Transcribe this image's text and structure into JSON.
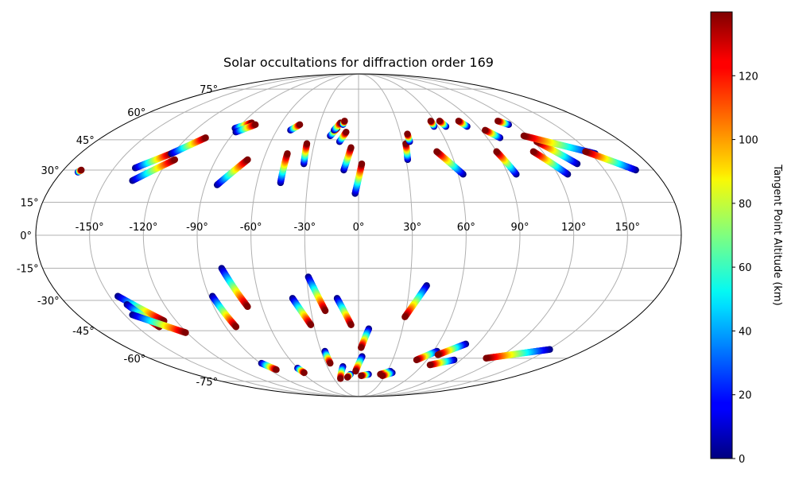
{
  "chart_data": {
    "type": "scatter",
    "title": "Solar occultations for diffraction order 169",
    "projection": "mollweide",
    "grid": true,
    "longitude_tick_labels": [
      "-150°",
      "-120°",
      "-90°",
      "-60°",
      "-30°",
      "0°",
      "30°",
      "60°",
      "90°",
      "120°",
      "150°"
    ],
    "longitude_tick_values": [
      -150,
      -120,
      -90,
      -60,
      -30,
      0,
      30,
      60,
      90,
      120,
      150
    ],
    "latitude_tick_labels": [
      "-75°",
      "-60°",
      "-45°",
      "-30°",
      "-15°",
      "0°",
      "15°",
      "30°",
      "45°",
      "60°",
      "75°"
    ],
    "latitude_tick_values": [
      -75,
      -60,
      -45,
      -30,
      -15,
      0,
      15,
      30,
      45,
      60,
      75
    ],
    "colorbar": {
      "label": "Tangent Point Altitude (km)",
      "colormap": "jet",
      "range": [
        0,
        140
      ],
      "tick_values": [
        0,
        20,
        40,
        60,
        80,
        100,
        120
      ],
      "tick_labels": [
        "0",
        "20",
        "40",
        "60",
        "80",
        "100",
        "120"
      ]
    },
    "tracks": [
      {
        "lon_low": -170,
        "lat_low": 29,
        "lon_high": -169,
        "lat_high": 30
      },
      {
        "lon_low": -137,
        "lat_low": 31,
        "lon_high": -121,
        "lat_high": 38
      },
      {
        "lon_low": -134,
        "lat_low": 25,
        "lon_high": -116,
        "lat_high": 35
      },
      {
        "lon_low": -121,
        "lat_low": 38,
        "lon_high": -107,
        "lat_high": 46
      },
      {
        "lon_low": -92,
        "lat_low": 51,
        "lon_high": -83,
        "lat_high": 54
      },
      {
        "lon_low": -89,
        "lat_low": 49,
        "lon_high": -79,
        "lat_high": 53
      },
      {
        "lon_low": -83,
        "lat_low": 23,
        "lon_high": -70,
        "lat_high": 35
      },
      {
        "lon_low": -50,
        "lat_low": 50,
        "lon_high": -45,
        "lat_high": 53
      },
      {
        "lon_low": -46,
        "lat_low": 24,
        "lon_high": -46,
        "lat_high": 38
      },
      {
        "lon_low": -34,
        "lat_low": 33,
        "lon_high": -35,
        "lat_high": 43
      },
      {
        "lon_low": -20,
        "lat_low": 47,
        "lon_high": -16,
        "lat_high": 51
      },
      {
        "lon_low": -18,
        "lat_low": 50,
        "lon_high": -14,
        "lat_high": 54
      },
      {
        "lon_low": -13,
        "lat_low": 44,
        "lon_high": -9,
        "lat_high": 49
      },
      {
        "lon_low": -12,
        "lat_low": 53,
        "lon_high": -11,
        "lat_high": 55
      },
      {
        "lon_low": -9,
        "lat_low": 30,
        "lon_high": -5,
        "lat_high": 41
      },
      {
        "lon_low": -2,
        "lat_low": 19,
        "lon_high": 2,
        "lat_high": 33
      },
      {
        "lon_low": 31,
        "lat_low": 35,
        "lon_high": 32,
        "lat_high": 43
      },
      {
        "lon_low": 35,
        "lat_low": 44,
        "lon_high": 35,
        "lat_high": 48
      },
      {
        "lon_low": 63,
        "lat_low": 28,
        "lon_high": 51,
        "lat_high": 39
      },
      {
        "lon_low": 57,
        "lat_low": 52,
        "lon_high": 57,
        "lat_high": 55
      },
      {
        "lon_low": 66,
        "lat_low": 52,
        "lon_high": 64,
        "lat_high": 55
      },
      {
        "lon_low": 82,
        "lat_low": 52,
        "lon_high": 79,
        "lat_high": 55
      },
      {
        "lon_low": 95,
        "lat_low": 28,
        "lon_high": 90,
        "lat_high": 39
      },
      {
        "lon_low": 99,
        "lat_low": 46,
        "lon_high": 93,
        "lat_high": 50
      },
      {
        "lon_low": 115,
        "lat_low": 53,
        "lon_high": 110,
        "lat_high": 55
      },
      {
        "lon_low": 126,
        "lat_low": 28,
        "lon_high": 114,
        "lat_high": 39
      },
      {
        "lon_low": 136,
        "lat_low": 33,
        "lon_high": 122,
        "lat_high": 44
      },
      {
        "lon_low": 153,
        "lat_low": 38,
        "lon_high": 117,
        "lat_high": 47
      },
      {
        "lon_low": 169,
        "lat_low": 30,
        "lon_high": 148,
        "lat_high": 39
      },
      {
        "lon_low": -145,
        "lat_low": -28,
        "lon_high": -128,
        "lat_high": -40
      },
      {
        "lon_low": -143,
        "lat_low": -32,
        "lon_high": -135,
        "lat_high": -43
      },
      {
        "lon_low": -145,
        "lat_low": -37,
        "lon_high": -121,
        "lat_high": -46
      },
      {
        "lon_low": -88,
        "lat_low": -28,
        "lon_high": -83,
        "lat_high": -43
      },
      {
        "lon_low": -78,
        "lat_low": -15,
        "lon_high": -69,
        "lat_high": -33
      },
      {
        "lon_low": -89,
        "lat_low": -63,
        "lon_high": -83,
        "lat_high": -67
      },
      {
        "lon_low": -60,
        "lat_low": -66,
        "lon_high": -58,
        "lat_high": -69
      },
      {
        "lon_low": -40,
        "lat_low": -29,
        "lon_high": -32,
        "lat_high": -42
      },
      {
        "lon_low": -29,
        "lat_low": -19,
        "lon_high": -21,
        "lat_high": -35
      },
      {
        "lon_low": -27,
        "lat_low": -56,
        "lon_high": -26,
        "lat_high": -63
      },
      {
        "lon_low": -13,
        "lat_low": -29,
        "lon_high": -5,
        "lat_high": -42
      },
      {
        "lon_low": -15,
        "lat_low": -65,
        "lon_high": -22,
        "lat_high": -73
      },
      {
        "lon_low": -9,
        "lat_low": -70,
        "lon_high": -13,
        "lat_high": -72
      },
      {
        "lon_low": 7,
        "lat_low": -44,
        "lon_high": 2,
        "lat_high": -54
      },
      {
        "lon_low": 3,
        "lat_low": -59,
        "lon_high": -3,
        "lat_high": -68
      },
      {
        "lon_low": 11,
        "lat_low": -70,
        "lon_high": 3,
        "lat_high": -71
      },
      {
        "lon_low": 40,
        "lat_low": -23,
        "lon_high": 30,
        "lat_high": -38
      },
      {
        "lon_low": 33,
        "lat_low": -68,
        "lon_high": 24,
        "lat_high": -70
      },
      {
        "lon_low": 36,
        "lat_low": -69,
        "lon_high": 27,
        "lat_high": -71
      },
      {
        "lon_low": 63,
        "lat_low": -56,
        "lon_high": 51,
        "lat_high": -61
      },
      {
        "lon_low": 81,
        "lat_low": -52,
        "lon_high": 66,
        "lat_high": -58
      },
      {
        "lon_low": 84,
        "lat_low": -61,
        "lon_high": 67,
        "lat_high": -64
      },
      {
        "lon_low": 151,
        "lat_low": -55,
        "lon_high": 110,
        "lat_high": -60
      }
    ]
  }
}
